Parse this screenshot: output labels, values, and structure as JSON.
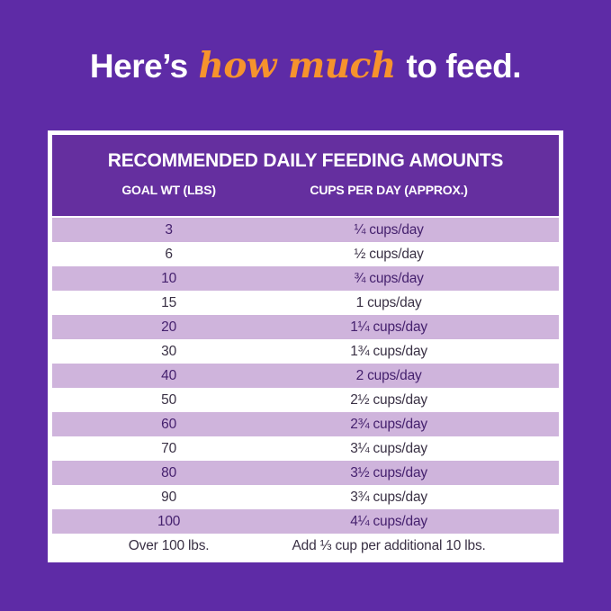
{
  "page": {
    "background_color": "#5e2ba6",
    "accent_orange": "#f6932d",
    "header_purple": "#652f9f",
    "row_lavender": "#cfb4dc"
  },
  "heading": {
    "prefix": "Here’s ",
    "highlight": "how much",
    "suffix": " to feed."
  },
  "table": {
    "title": "RECOMMENDED DAILY FEEDING AMOUNTS",
    "columns": [
      "GOAL WT (LBS)",
      "CUPS PER DAY (APPROX.)"
    ]
  },
  "chart_data": {
    "type": "table",
    "title": "RECOMMENDED DAILY FEEDING AMOUNTS",
    "columns": [
      "GOAL WT (LBS)",
      "CUPS PER DAY (APPROX.)"
    ],
    "rows": [
      [
        "3",
        "¼ cups/day"
      ],
      [
        "6",
        "½ cups/day"
      ],
      [
        "10",
        "¾ cups/day"
      ],
      [
        "15",
        "1 cups/day"
      ],
      [
        "20",
        "1¼ cups/day"
      ],
      [
        "30",
        "1¾ cups/day"
      ],
      [
        "40",
        "2 cups/day"
      ],
      [
        "50",
        "2½ cups/day"
      ],
      [
        "60",
        "2¾ cups/day"
      ],
      [
        "70",
        "3¼ cups/day"
      ],
      [
        "80",
        "3½ cups/day"
      ],
      [
        "90",
        "3¾ cups/day"
      ],
      [
        "100",
        "4¼ cups/day"
      ],
      [
        "Over 100 lbs.",
        "Add ⅓ cup per additional 10 lbs."
      ]
    ]
  }
}
